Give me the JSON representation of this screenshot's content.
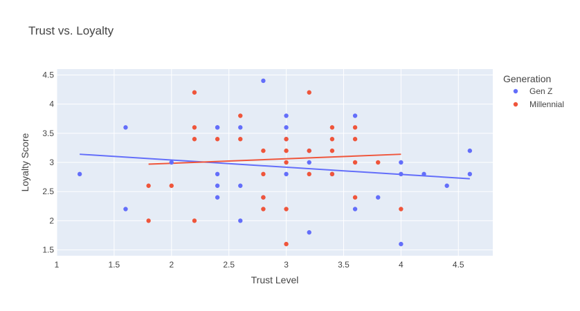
{
  "chart_data": {
    "type": "scatter",
    "title": "Trust vs. Loyalty",
    "xlabel": "Trust Level",
    "ylabel": "Loyalty Score",
    "xlim": [
      1,
      4.8
    ],
    "ylim": [
      1.4,
      4.6
    ],
    "x_ticks": [
      1,
      1.5,
      2,
      2.5,
      3,
      3.5,
      4,
      4.5
    ],
    "y_ticks": [
      1.5,
      2,
      2.5,
      3,
      3.5,
      4,
      4.5
    ],
    "grid": true,
    "legend": {
      "title": "Generation",
      "placement": "top-right"
    },
    "series": [
      {
        "name": "Gen Z",
        "color": "#636efa",
        "points": [
          [
            1.2,
            2.8
          ],
          [
            1.6,
            3.6
          ],
          [
            1.6,
            2.2
          ],
          [
            2.0,
            3.0
          ],
          [
            2.4,
            3.6
          ],
          [
            2.4,
            3.6
          ],
          [
            2.4,
            2.8
          ],
          [
            2.4,
            2.6
          ],
          [
            2.4,
            2.4
          ],
          [
            2.6,
            3.6
          ],
          [
            2.6,
            2.6
          ],
          [
            2.6,
            2.0
          ],
          [
            2.8,
            4.4
          ],
          [
            2.8,
            2.4
          ],
          [
            3.0,
            3.8
          ],
          [
            3.0,
            3.6
          ],
          [
            3.0,
            3.4
          ],
          [
            3.0,
            2.8
          ],
          [
            3.2,
            3.2
          ],
          [
            3.2,
            3.0
          ],
          [
            3.2,
            1.8
          ],
          [
            3.4,
            2.8
          ],
          [
            3.6,
            3.8
          ],
          [
            3.6,
            2.2
          ],
          [
            3.8,
            2.4
          ],
          [
            4.0,
            3.0
          ],
          [
            4.0,
            2.8
          ],
          [
            4.0,
            1.6
          ],
          [
            4.2,
            2.8
          ],
          [
            4.4,
            2.6
          ],
          [
            4.6,
            3.2
          ],
          [
            4.6,
            2.8
          ]
        ],
        "trendline": [
          [
            1.2,
            3.14
          ],
          [
            4.6,
            2.72
          ]
        ]
      },
      {
        "name": "Millennial",
        "color": "#ef553b",
        "points": [
          [
            1.8,
            2.6
          ],
          [
            1.8,
            2.0
          ],
          [
            2.0,
            2.6
          ],
          [
            2.2,
            4.2
          ],
          [
            2.2,
            3.6
          ],
          [
            2.2,
            3.4
          ],
          [
            2.2,
            2.0
          ],
          [
            2.4,
            3.4
          ],
          [
            2.6,
            3.8
          ],
          [
            2.6,
            3.4
          ],
          [
            2.8,
            3.2
          ],
          [
            2.8,
            2.8
          ],
          [
            2.8,
            2.4
          ],
          [
            2.8,
            2.2
          ],
          [
            3.0,
            3.4
          ],
          [
            3.0,
            3.2
          ],
          [
            3.0,
            3.0
          ],
          [
            3.0,
            2.2
          ],
          [
            3.0,
            1.6
          ],
          [
            3.2,
            4.2
          ],
          [
            3.2,
            3.2
          ],
          [
            3.2,
            2.8
          ],
          [
            3.4,
            3.6
          ],
          [
            3.4,
            3.4
          ],
          [
            3.4,
            3.2
          ],
          [
            3.4,
            2.8
          ],
          [
            3.6,
            3.6
          ],
          [
            3.6,
            3.4
          ],
          [
            3.6,
            3.0
          ],
          [
            3.6,
            2.4
          ],
          [
            3.8,
            3.0
          ],
          [
            4.0,
            2.2
          ]
        ],
        "trendline": [
          [
            1.8,
            2.97
          ],
          [
            4.0,
            3.14
          ]
        ]
      }
    ]
  }
}
